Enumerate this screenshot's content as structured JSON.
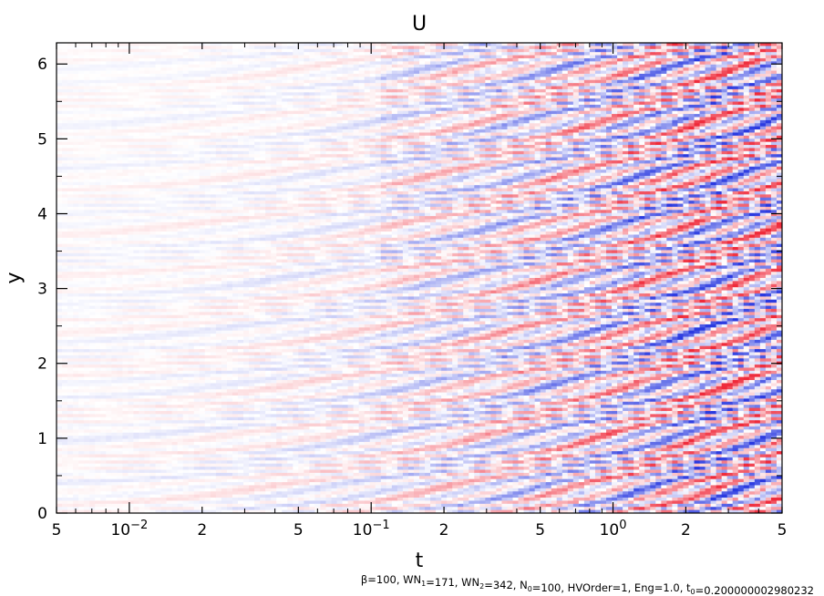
{
  "chart_data": {
    "type": "heatmap",
    "title": "U",
    "xlabel": "t",
    "ylabel": "y",
    "x_scale": "log",
    "xlim": [
      0.005,
      5
    ],
    "ylim": [
      0,
      6.283
    ],
    "x_ticks": [
      {
        "value": 0.005,
        "label": "5"
      },
      {
        "value": 0.01,
        "label": "10",
        "exp": "−2"
      },
      {
        "value": 0.02,
        "label": "2"
      },
      {
        "value": 0.05,
        "label": "5"
      },
      {
        "value": 0.1,
        "label": "10",
        "exp": "−1"
      },
      {
        "value": 0.2,
        "label": "2"
      },
      {
        "value": 0.5,
        "label": "5"
      },
      {
        "value": 1,
        "label": "10",
        "exp": "0"
      },
      {
        "value": 2,
        "label": "2"
      },
      {
        "value": 5,
        "label": "5"
      }
    ],
    "y_ticks": [
      {
        "value": 0,
        "label": "0"
      },
      {
        "value": 1,
        "label": "1"
      },
      {
        "value": 2,
        "label": "2"
      },
      {
        "value": 3,
        "label": "3"
      },
      {
        "value": 4,
        "label": "4"
      },
      {
        "value": 5,
        "label": "5"
      },
      {
        "value": 6,
        "label": "6"
      }
    ],
    "colormap": {
      "negative": "#2a3ae0",
      "zero": "#ffffff",
      "positive": "#ef2a3a"
    },
    "grid": false,
    "legend": "none"
  },
  "footer": {
    "parts": [
      {
        "text": "β=100, WN",
        "sub": "1"
      },
      {
        "text": "=171, WN",
        "sub": "2"
      },
      {
        "text": "=342, N",
        "sub": "0"
      },
      {
        "text": "=100, HVOrder=1, Eng=1.0, t",
        "sub": "0"
      },
      {
        "text": "=0.200000002980232",
        "sub": ""
      }
    ]
  }
}
